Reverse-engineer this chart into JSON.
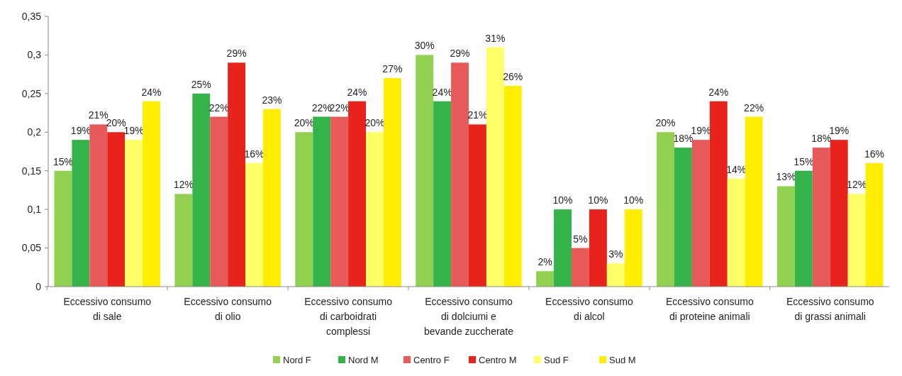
{
  "chart_data": {
    "type": "bar",
    "categories": [
      "Eccessivo consumo\ndi sale",
      "Eccessivo consumo\ndi olio",
      "Eccessivo consumo\ndi carboidrati\ncomplessi",
      "Eccessivo consumo\ndi dolciumi e\nbevande zuccherate",
      "Eccessivo consumo\ndi alcol",
      "Eccessivo consumo\ndi proteine animali",
      "Eccessivo consumo\ndi grassi animali"
    ],
    "series": [
      {
        "name": "Nord F",
        "color": "#92d050",
        "values": [
          0.15,
          0.12,
          0.2,
          0.3,
          0.02,
          0.2,
          0.13
        ],
        "value_labels": [
          "15%",
          "12%",
          "20%",
          "30%",
          "2%",
          "20%",
          "13%"
        ]
      },
      {
        "name": "Nord M",
        "color": "#33b34a",
        "values": [
          0.19,
          0.25,
          0.22,
          0.24,
          0.1,
          0.18,
          0.15
        ],
        "value_labels": [
          "19%",
          "25%",
          "22%",
          "24%",
          "10%",
          "18%",
          "15%"
        ]
      },
      {
        "name": "Centro F",
        "color": "#e85a5a",
        "values": [
          0.21,
          0.22,
          0.22,
          0.29,
          0.05,
          0.19,
          0.18
        ],
        "value_labels": [
          "21%",
          "22%",
          "22%",
          "29%",
          "5%",
          "19%",
          "18%"
        ]
      },
      {
        "name": "Centro M",
        "color": "#e8231b",
        "values": [
          0.2,
          0.29,
          0.24,
          0.21,
          0.1,
          0.24,
          0.19
        ],
        "value_labels": [
          "20%",
          "29%",
          "24%",
          "21%",
          "10%",
          "24%",
          "19%"
        ]
      },
      {
        "name": "Sud F",
        "color": "#ffff66",
        "values": [
          0.19,
          0.16,
          0.2,
          0.31,
          0.03,
          0.14,
          0.12
        ],
        "value_labels": [
          "19%",
          "16%",
          "20%",
          "31%",
          "3%",
          "14%",
          "12%"
        ]
      },
      {
        "name": "Sud M",
        "color": "#ffee00",
        "values": [
          0.24,
          0.23,
          0.27,
          0.26,
          0.1,
          0.22,
          0.16
        ],
        "value_labels": [
          "24%",
          "23%",
          "27%",
          "26%",
          "10%",
          "22%",
          "16%"
        ]
      }
    ],
    "ylim": [
      0,
      0.35
    ],
    "yticks": [
      0,
      {
        "value": 0.05,
        "label": "0,05"
      },
      {
        "value": 0.1,
        "label": "0,1"
      },
      {
        "value": 0.15,
        "label": "0,15"
      },
      {
        "value": 0.2,
        "label": "0,2"
      },
      {
        "value": 0.25,
        "label": "0,25"
      },
      {
        "value": 0.3,
        "label": "0,3"
      },
      {
        "value": 0.35,
        "label": "0,35"
      }
    ],
    "legend": "bottom"
  }
}
